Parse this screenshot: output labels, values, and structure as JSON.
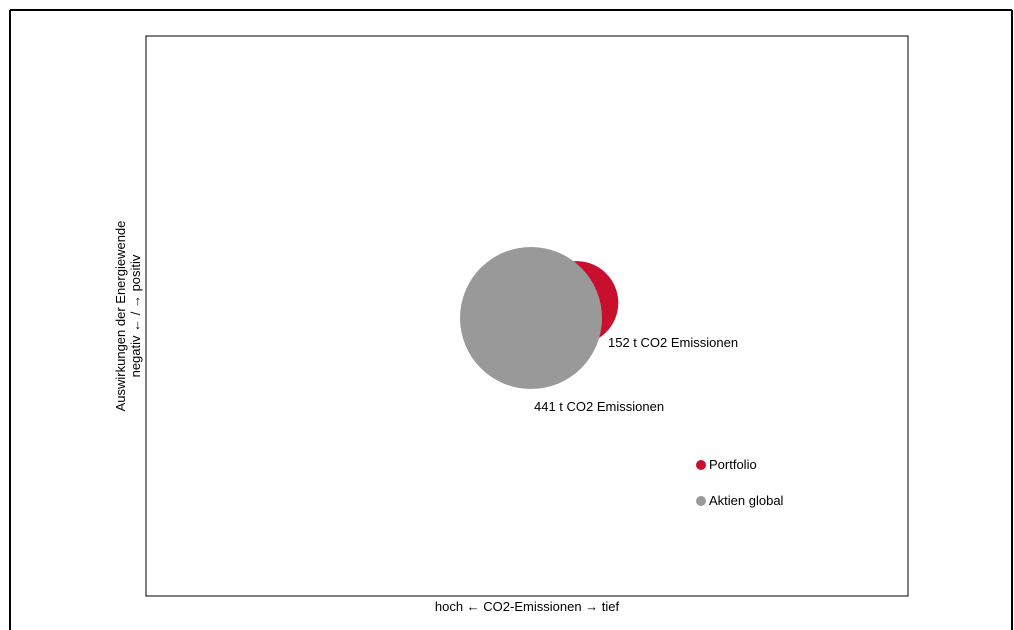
{
  "chart_data": {
    "type": "scatter",
    "xlabel": "hoch ← CO2-Emissionen → tief",
    "ylabel_line1": "Auswirkungen der Energiewende",
    "ylabel_line2": "negativ ← / → positiv",
    "series": [
      {
        "name": "Portfolio",
        "color": "#c8102e",
        "x": 0.06,
        "y": 0.04,
        "emissions_t": 152,
        "label": "152 t CO2 Emissionen"
      },
      {
        "name": "Aktien global",
        "color": "#999999",
        "x": 0.0,
        "y": 0.0,
        "emissions_t": 441,
        "label": "441 t CO2 Emissionen"
      }
    ],
    "legend_position": "bottom-right",
    "grid": false
  }
}
